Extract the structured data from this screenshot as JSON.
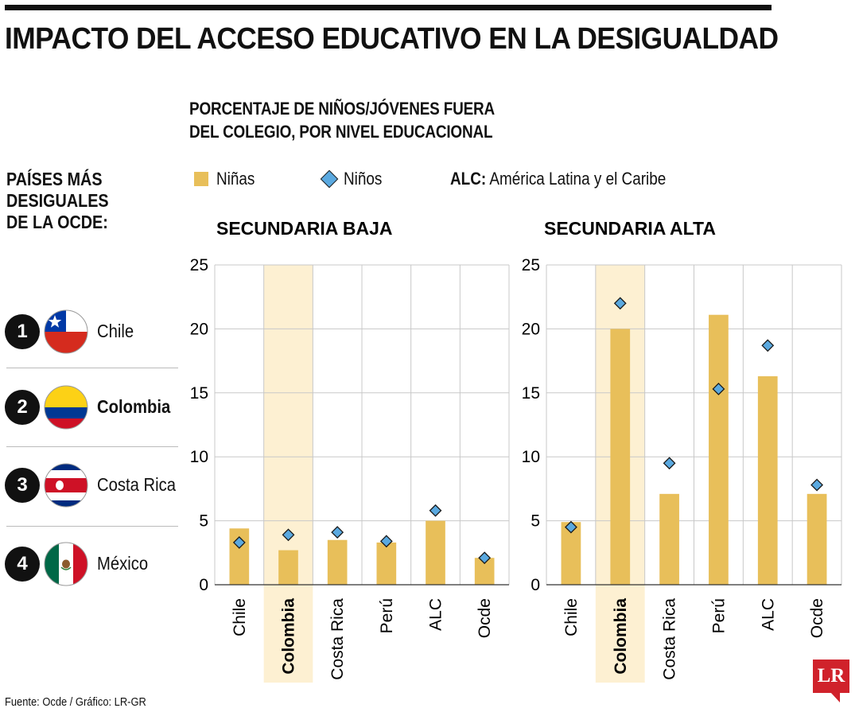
{
  "header": {
    "title": "IMPACTO DEL ACCESO EDUCATIVO EN LA DESIGUALDAD",
    "subtitle_lines": [
      "PORCENTAJE DE NIÑOS/JÓVENES FUERA",
      "DEL COLEGIO, POR NIVEL EDUCACIONAL"
    ]
  },
  "legend": {
    "girls_label": "Niñas",
    "boys_label": "Niños",
    "alc_abbr": "ALC:",
    "alc_full": "América Latina y el Caribe"
  },
  "sidebar": {
    "heading_lines": [
      "PAÍSES MÁS",
      "DESIGUALES",
      "DE LA OCDE:"
    ],
    "items": [
      {
        "rank": "1",
        "country": "Chile",
        "flag": "chile-flag-icon",
        "bold": false
      },
      {
        "rank": "2",
        "country": "Colombia",
        "flag": "colombia-flag-icon",
        "bold": true
      },
      {
        "rank": "3",
        "country": "Costa Rica",
        "flag": "costa-rica-flag-icon",
        "bold": false
      },
      {
        "rank": "4",
        "country": "México",
        "flag": "mexico-flag-icon",
        "bold": false
      }
    ]
  },
  "footer": {
    "source": "Fuente: Ocde / Gráfico: LR-GR",
    "logo": "LR"
  },
  "colors": {
    "bar": "#e8bf5a",
    "marker": "#5aa9e0",
    "highlight": "#fdf0d2",
    "grid": "#c8c8c8",
    "logo": "#d0222b"
  },
  "chart_data": [
    {
      "type": "bar",
      "title": "SECUNDARIA BAJA",
      "categories": [
        "Chile",
        "Colombia",
        "Costa Rica",
        "Perú",
        "ALC",
        "Ocde"
      ],
      "highlight": "Colombia",
      "ylim": [
        0,
        25
      ],
      "yticks": [
        0,
        5,
        10,
        15,
        20,
        25
      ],
      "grid": true,
      "series": [
        {
          "name": "Niñas",
          "kind": "bar",
          "values": [
            4.4,
            2.7,
            3.5,
            3.3,
            5.0,
            2.1
          ]
        },
        {
          "name": "Niños",
          "kind": "diamond",
          "values": [
            3.3,
            3.9,
            4.1,
            3.4,
            5.8,
            2.1
          ]
        }
      ]
    },
    {
      "type": "bar",
      "title": "SECUNDARIA ALTA",
      "categories": [
        "Chile",
        "Colombia",
        "Costa Rica",
        "Perú",
        "ALC",
        "Ocde"
      ],
      "highlight": "Colombia",
      "ylim": [
        0,
        25
      ],
      "yticks": [
        0,
        5,
        10,
        15,
        20,
        25
      ],
      "grid": true,
      "series": [
        {
          "name": "Niñas",
          "kind": "bar",
          "values": [
            4.9,
            20.0,
            7.1,
            21.1,
            16.3,
            7.1
          ]
        },
        {
          "name": "Niños",
          "kind": "diamond",
          "values": [
            4.5,
            22.0,
            9.5,
            15.3,
            18.7,
            7.8
          ]
        }
      ]
    }
  ]
}
